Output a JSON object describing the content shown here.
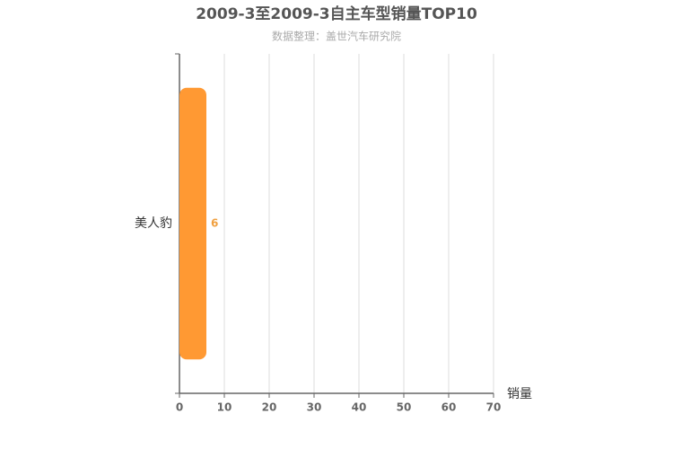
{
  "chart_data": {
    "type": "bar",
    "orientation": "horizontal",
    "title": "2009-3至2009-3自主车型销量TOP10",
    "subtitle": "数据整理：盖世汽车研究院",
    "x_label": "销量",
    "categories": [
      "美人豹"
    ],
    "values": [
      6
    ],
    "color": "#ff9933",
    "label_color": "#f0a040",
    "xlim": [
      0,
      70
    ],
    "xticks": [
      0,
      10,
      20,
      30,
      40,
      50,
      60,
      70
    ],
    "grid": true
  }
}
